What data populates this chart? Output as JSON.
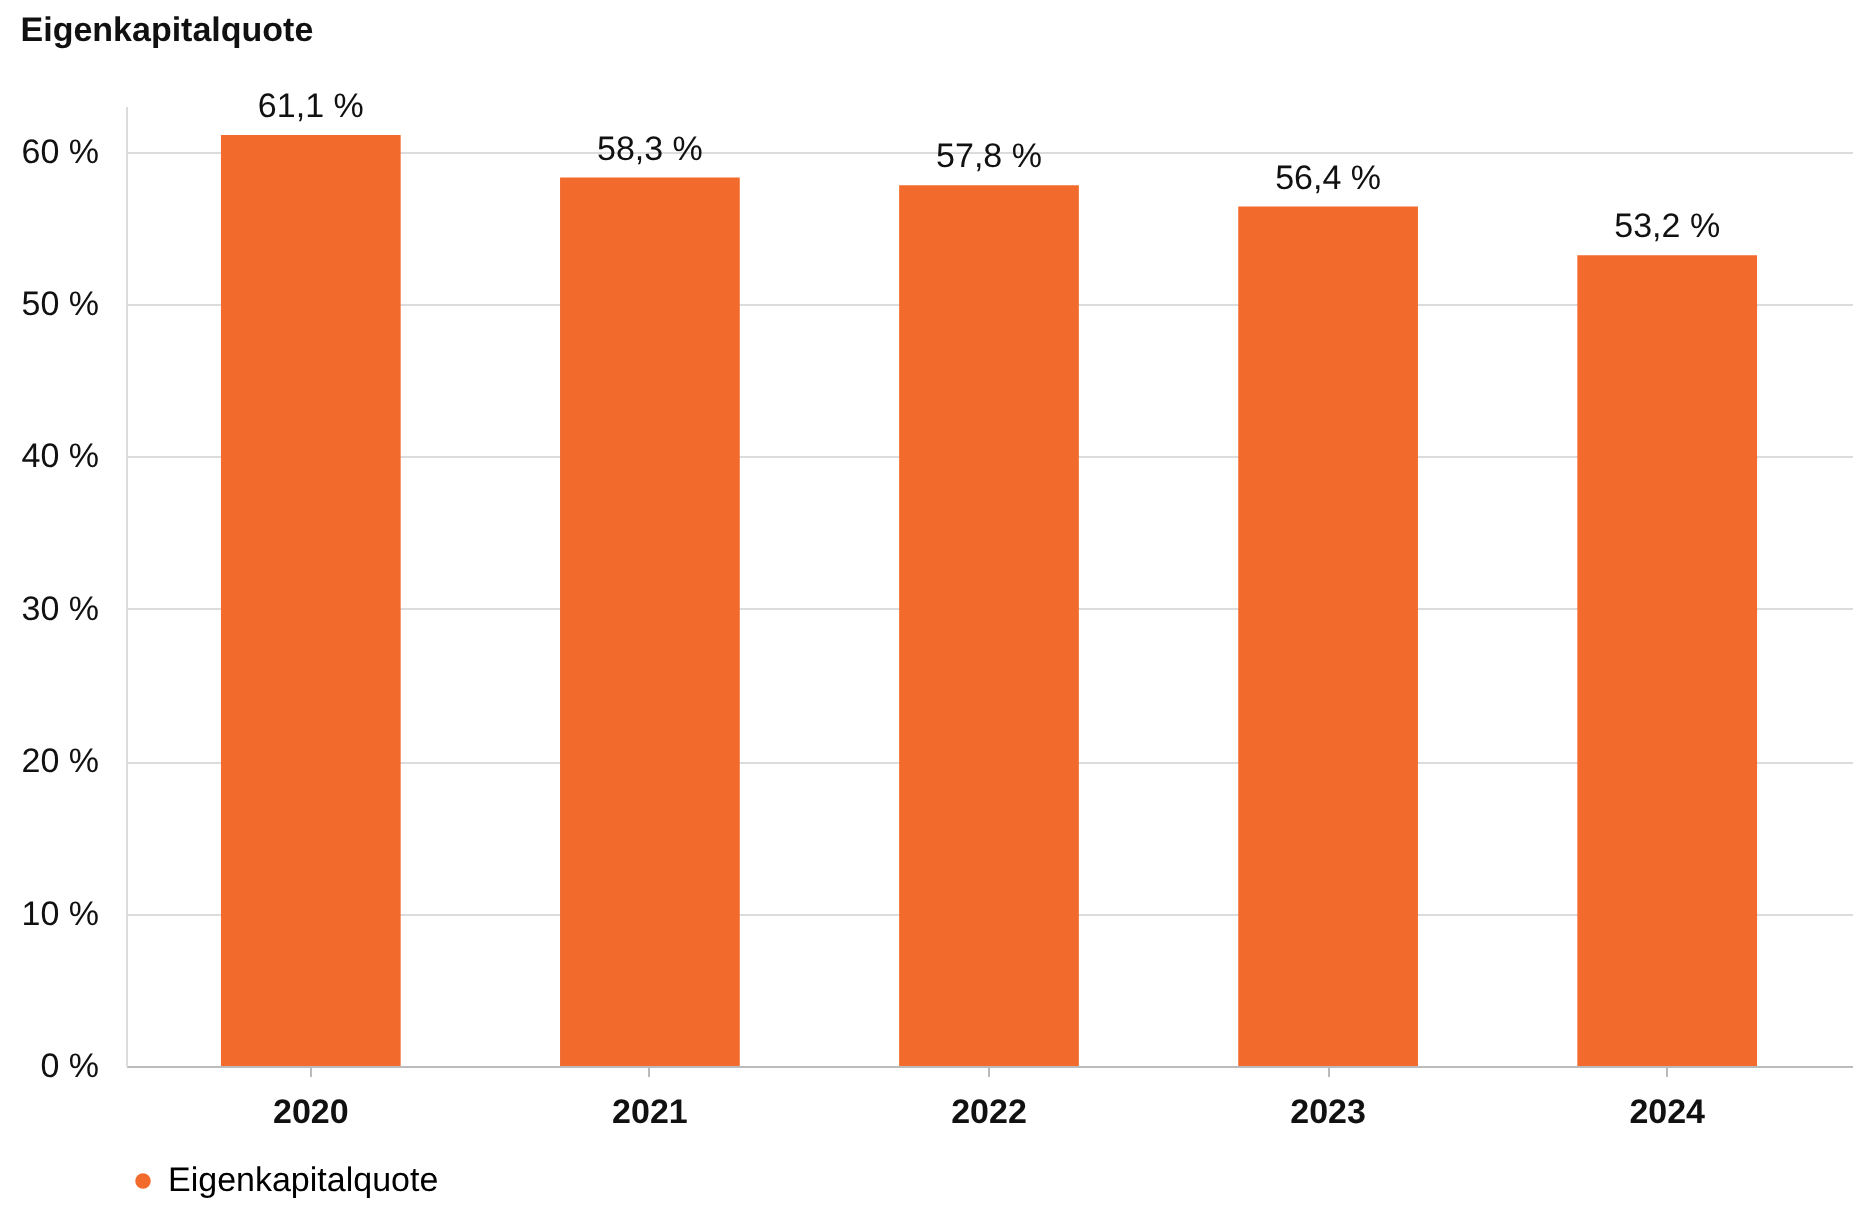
{
  "chart_data": {
    "type": "bar",
    "title": "Eigenkapitalquote",
    "categories": [
      "2020",
      "2021",
      "2022",
      "2023",
      "2024"
    ],
    "series": [
      {
        "name": "Eigenkapitalquote",
        "color": "#f26a2c",
        "values": [
          61.1,
          58.3,
          57.8,
          56.4,
          53.2
        ],
        "value_labels": [
          "61,1 %",
          "58,3 %",
          "57,8 %",
          "56,4 %",
          "53,2 %"
        ]
      }
    ],
    "ylim": [
      0,
      63
    ],
    "yticks": [
      {
        "value": 0,
        "label": "0 %"
      },
      {
        "value": 10,
        "label": "10 %"
      },
      {
        "value": 20,
        "label": "20 %"
      },
      {
        "value": 30,
        "label": "30 %"
      },
      {
        "value": 40,
        "label": "40 %"
      },
      {
        "value": 50,
        "label": "50 %"
      },
      {
        "value": 60,
        "label": "60 %"
      }
    ],
    "grid": "y",
    "legend": "bottom"
  }
}
